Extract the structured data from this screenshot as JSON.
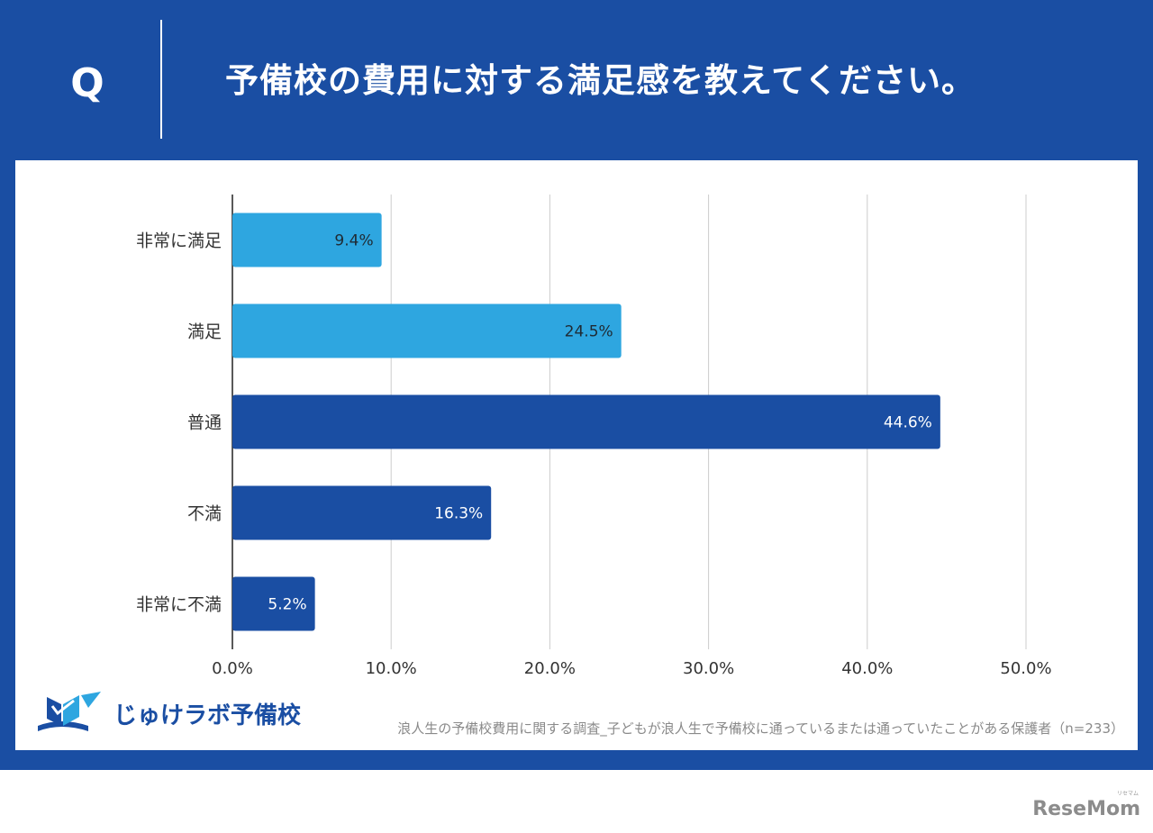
{
  "header": {
    "q_label": "Q",
    "title": "予備校の費用に対する満足感を教えてください。"
  },
  "colors": {
    "frame": "#1a4ea3",
    "bar_light": "#2ea6e0",
    "bar_dark": "#1a4ea3",
    "grid": "#cccccc",
    "axis": "#222222"
  },
  "chart_data": {
    "type": "bar",
    "orientation": "horizontal",
    "categories": [
      "非常に満足",
      "満足",
      "普通",
      "不満",
      "非常に不満"
    ],
    "values": [
      9.4,
      24.5,
      44.6,
      16.3,
      5.2
    ],
    "value_labels": [
      "9.4%",
      "24.5%",
      "44.6%",
      "16.3%",
      "5.2%"
    ],
    "bar_colors": [
      "#2ea6e0",
      "#2ea6e0",
      "#1a4ea3",
      "#1a4ea3",
      "#1a4ea3"
    ],
    "label_colors": [
      "#1f2a33",
      "#1f2a33",
      "#ffffff",
      "#ffffff",
      "#ffffff"
    ],
    "xlim": [
      0,
      50
    ],
    "xticks": [
      0,
      10,
      20,
      30,
      40,
      50
    ],
    "xtick_labels": [
      "0.0%",
      "10.0%",
      "20.0%",
      "30.0%",
      "40.0%",
      "50.0%"
    ],
    "grid": true,
    "legend": "none"
  },
  "footer": {
    "logo_text": "じゅけラボ予備校",
    "source": "浪人生の予備校費用に関する調査_子どもが浪人生で予備校に通っているまたは通っていたことがある保護者（n=233）"
  },
  "watermark": {
    "text": "ReseMom",
    "ruby": "リセマム"
  }
}
